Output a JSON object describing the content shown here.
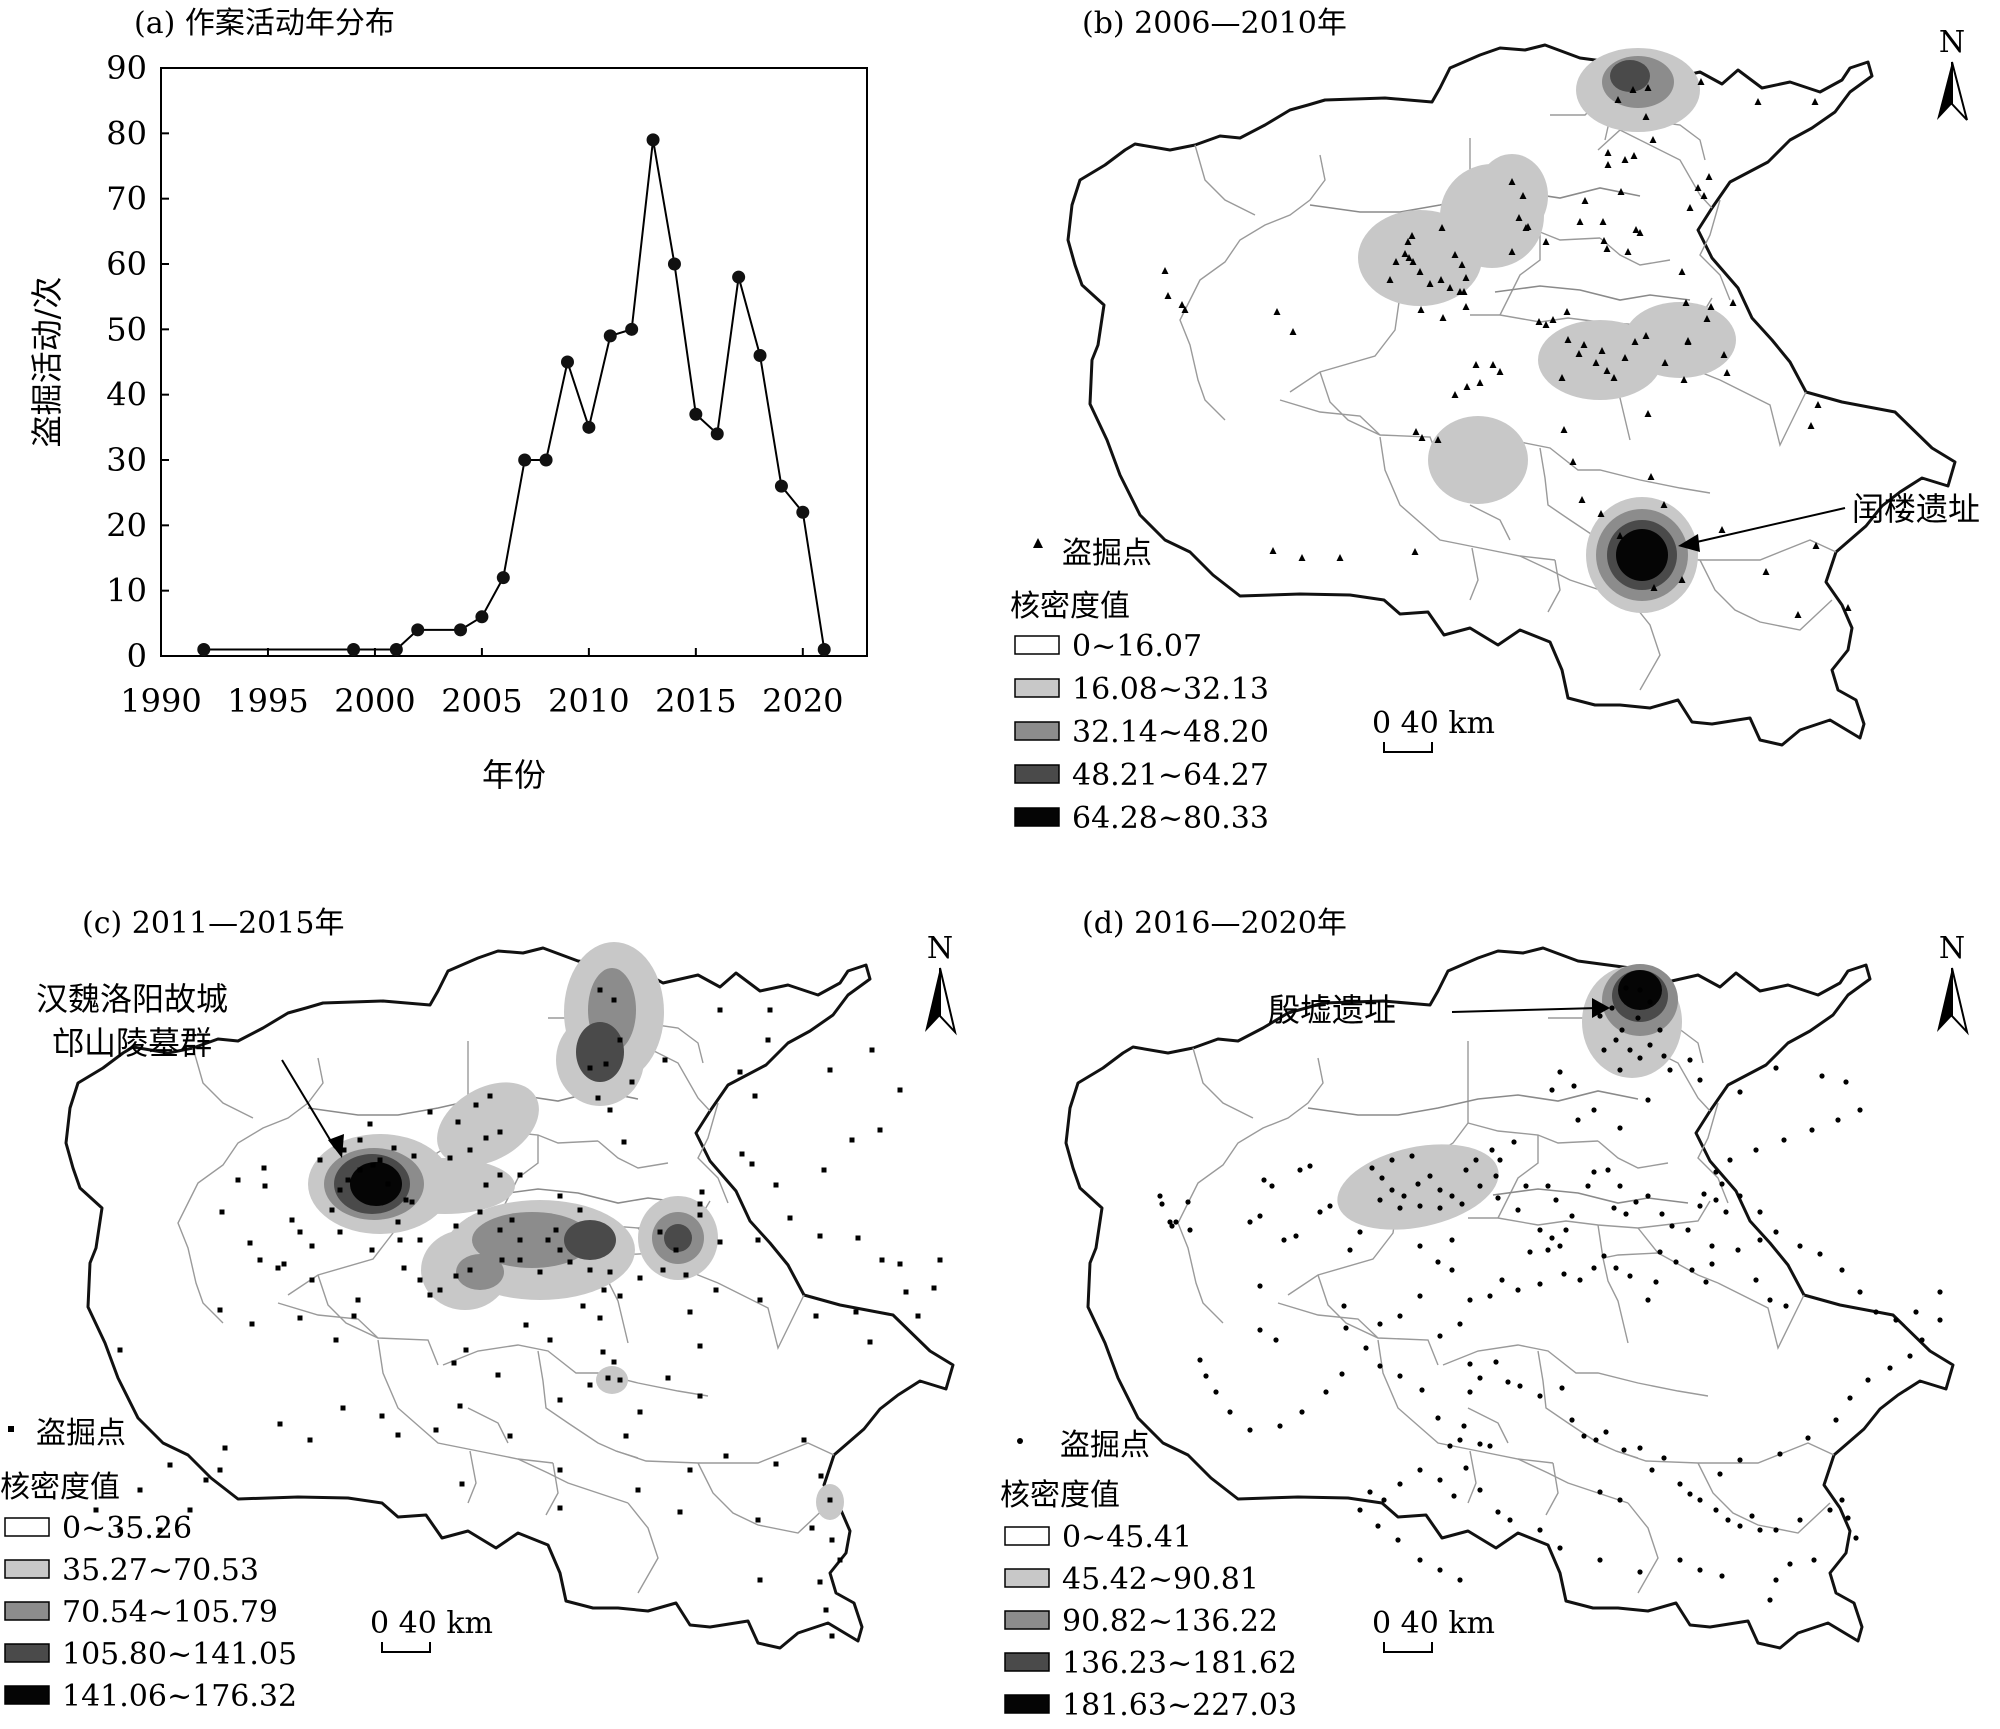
{
  "chart_data": [
    {
      "type": "line",
      "panel": "a",
      "title": "(a) 作案活动年分布",
      "xlabel": "年份",
      "ylabel": "盗掘活动/次",
      "xlim": [
        1990,
        2023
      ],
      "ylim": [
        0,
        90
      ],
      "xticks": [
        1990,
        1995,
        2000,
        2005,
        2010,
        2015,
        2020
      ],
      "yticks": [
        0,
        10,
        20,
        30,
        40,
        50,
        60,
        70,
        80,
        90
      ],
      "x": [
        1992,
        1999,
        2001,
        2002,
        2004,
        2005,
        2006,
        2007,
        2008,
        2009,
        2010,
        2011,
        2012,
        2013,
        2014,
        2015,
        2016,
        2017,
        2018,
        2019,
        2020,
        2021
      ],
      "values": [
        1,
        1,
        1,
        4,
        4,
        6,
        12,
        30,
        30,
        45,
        35,
        49,
        50,
        79,
        60,
        37,
        34,
        58,
        46,
        26,
        22,
        1
      ]
    },
    {
      "type": "heatmap",
      "panel": "b",
      "title": "(b) 2006—2010年",
      "point_label": "盗掘点",
      "legend_title": "核密度值",
      "classes": [
        "0~16.07",
        "16.08~32.13",
        "32.14~48.20",
        "48.21~64.27",
        "64.28~80.33"
      ],
      "annotation": "闰楼遗址",
      "scale": "0   40 km",
      "north": "N"
    },
    {
      "type": "heatmap",
      "panel": "c",
      "title": "(c) 2011—2015年",
      "point_label": "盗掘点",
      "legend_title": "核密度值",
      "classes": [
        "0~35.26",
        "35.27~70.53",
        "70.54~105.79",
        "105.80~141.05",
        "141.06~176.32"
      ],
      "annotation_line1": "汉魏洛阳故城",
      "annotation_line2": "邙山陵墓群",
      "scale": "0   40 km",
      "north": "N"
    },
    {
      "type": "heatmap",
      "panel": "d",
      "title": "(d) 2016—2020年",
      "point_label": "盗掘点",
      "legend_title": "核密度值",
      "classes": [
        "0~45.41",
        "45.42~90.81",
        "90.82~136.22",
        "136.23~181.62",
        "181.63~227.03"
      ],
      "annotation": "殷墟遗址",
      "scale": "0   40 km",
      "north": "N"
    }
  ],
  "colors": {
    "class_fill": [
      "#ffffff",
      "#c8c8c8",
      "#8c8c8c",
      "#4a4a4a",
      "#050505"
    ]
  }
}
